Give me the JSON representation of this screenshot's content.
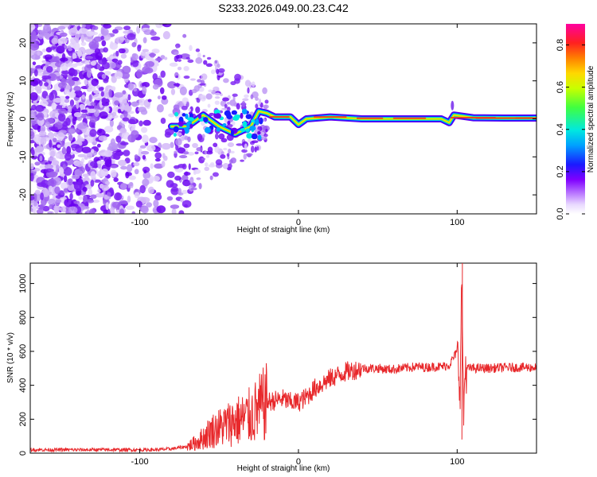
{
  "title": "S233.2026.049.00.23.C42",
  "chart_data": [
    {
      "type": "heatmap",
      "name": "spectrogram",
      "xlabel": "Height of straight line (km)",
      "ylabel": "Frequency (Hz)",
      "xlim": [
        -169,
        150
      ],
      "ylim": [
        -25,
        25
      ],
      "xticks": [
        -100,
        0,
        100
      ],
      "yticks": [
        -20,
        -10,
        0,
        10,
        20
      ],
      "colorbar": {
        "label": "Normalized spectral amplitude",
        "range": [
          0,
          0.9
        ],
        "ticks": [
          0.0,
          0.2,
          0.4,
          0.6,
          0.8
        ]
      },
      "signal_track": [
        [
          -80,
          -2
        ],
        [
          -70,
          -2
        ],
        [
          -60,
          1
        ],
        [
          -50,
          -2
        ],
        [
          -40,
          -4
        ],
        [
          -30,
          -2
        ],
        [
          -25,
          2
        ],
        [
          -20,
          1.5
        ],
        [
          -15,
          0.5
        ],
        [
          -5,
          0.5
        ],
        [
          0,
          -1.5
        ],
        [
          5,
          0
        ],
        [
          20,
          0.5
        ],
        [
          40,
          0
        ],
        [
          60,
          0
        ],
        [
          80,
          0
        ],
        [
          90,
          0
        ],
        [
          95,
          -1
        ],
        [
          98,
          1
        ],
        [
          110,
          0.3
        ],
        [
          130,
          0.2
        ],
        [
          150,
          0.2
        ]
      ]
    },
    {
      "type": "line",
      "name": "snr",
      "xlabel": "Height of straight line (km)",
      "ylabel": "SNR (10 * v/v)",
      "xlim": [
        -169,
        150
      ],
      "ylim": [
        0,
        1120
      ],
      "xticks": [
        -100,
        0,
        100
      ],
      "yticks": [
        0,
        200,
        400,
        600,
        800,
        1000
      ],
      "color": "#e8282b",
      "series": [
        {
          "name": "SNR",
          "x": [
            -169,
            -150,
            -130,
            -110,
            -90,
            -80,
            -70,
            -65,
            -60,
            -55,
            -50,
            -45,
            -40,
            -35,
            -30,
            -25,
            -20,
            -15,
            -10,
            -5,
            0,
            5,
            10,
            15,
            20,
            25,
            30,
            35,
            40,
            45,
            50,
            55,
            60,
            65,
            70,
            75,
            80,
            85,
            90,
            95,
            100,
            102,
            103,
            104,
            105,
            110,
            120,
            130,
            140,
            150
          ],
          "y": [
            20,
            20,
            20,
            20,
            20,
            25,
            40,
            60,
            90,
            130,
            150,
            170,
            190,
            200,
            220,
            260,
            300,
            310,
            320,
            300,
            300,
            330,
            380,
            410,
            440,
            460,
            480,
            490,
            500,
            500,
            500,
            495,
            495,
            500,
            505,
            510,
            505,
            510,
            510,
            520,
            600,
            400,
            1120,
            200,
            500,
            500,
            500,
            505,
            505,
            505
          ]
        }
      ]
    }
  ]
}
